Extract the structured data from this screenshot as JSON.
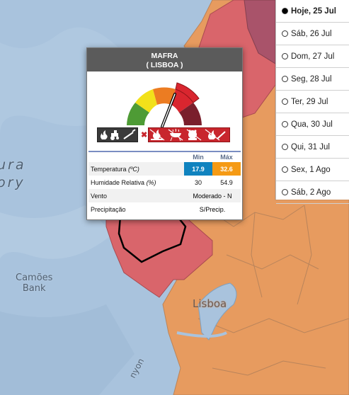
{
  "map": {
    "labels": {
      "ocean_line1": "ura",
      "ocean_line2": "ory",
      "bank_line1": "Camões",
      "bank_line2": "Bank",
      "city": "Lisboa",
      "canyon": "nyon"
    },
    "colors": {
      "sea": "#a9c3dd",
      "orange": "#e79b5f",
      "red": "#d9656b",
      "dark_red": "#a9536a"
    }
  },
  "days": {
    "items": [
      {
        "label": "Hoje, 25 Jul",
        "selected": true
      },
      {
        "label": "Sáb, 26 Jul",
        "selected": false
      },
      {
        "label": "Dom, 27 Jul",
        "selected": false
      },
      {
        "label": "Seg, 28 Jul",
        "selected": false
      },
      {
        "label": "Ter, 29 Jul",
        "selected": false
      },
      {
        "label": "Qua, 30 Jul",
        "selected": false
      },
      {
        "label": "Qui, 31 Jul",
        "selected": false
      },
      {
        "label": "Sex, 1 Ago",
        "selected": false
      },
      {
        "label": "Sáb, 2 Ago",
        "selected": false
      }
    ]
  },
  "popup": {
    "municipality": "MAFRA",
    "district": "( LISBOA )",
    "risk_level": 4,
    "risk_colors": [
      "#4e9b35",
      "#f2e11a",
      "#ec7c22",
      "#d9262f",
      "#7a1f2c"
    ],
    "icons": {
      "allowed": [
        "fire-icon",
        "tractor-icon",
        "lighter-icon"
      ],
      "forbidden": [
        "bonfire-icon",
        "barbecue-icon",
        "fireworks-icon",
        "burning-icon"
      ]
    },
    "table": {
      "col_min": "Min",
      "col_max": "Máx",
      "temp_label": "Temperatura",
      "temp_unit": "(ºC)",
      "temp_min": "17.9",
      "temp_max": "32.6",
      "humidity_label": "Humidade Relativa",
      "humidity_unit": "(%)",
      "humidity_min": "30",
      "humidity_max": "54.9",
      "wind_label": "Vento",
      "wind_value": "Moderado - N",
      "precip_label": "Precipitação",
      "precip_value": "S/Precip."
    }
  }
}
